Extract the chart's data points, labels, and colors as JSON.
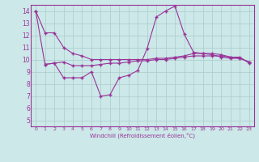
{
  "bg_color": "#cce8e8",
  "line_color": "#993399",
  "grid_color": "#aacccc",
  "xlabel": "Windchill (Refroidissement éolien,°C)",
  "xlim": [
    -0.5,
    23.5
  ],
  "ylim": [
    4.5,
    14.5
  ],
  "xticks": [
    0,
    1,
    2,
    3,
    4,
    5,
    6,
    7,
    8,
    9,
    10,
    11,
    12,
    13,
    14,
    15,
    16,
    17,
    18,
    19,
    20,
    21,
    22,
    23
  ],
  "yticks": [
    5,
    6,
    7,
    8,
    9,
    10,
    11,
    12,
    13,
    14
  ],
  "line1_x": [
    0,
    1,
    2,
    3,
    4,
    5,
    6,
    7,
    8,
    9,
    10,
    11,
    12,
    13,
    14,
    15,
    16,
    17,
    18,
    19,
    20,
    21,
    22,
    23
  ],
  "line1_y": [
    14.0,
    12.2,
    12.2,
    11.0,
    10.5,
    10.3,
    10.0,
    10.0,
    10.0,
    10.0,
    10.0,
    10.0,
    10.0,
    10.1,
    10.1,
    10.2,
    10.3,
    10.5,
    10.5,
    10.5,
    10.4,
    10.2,
    10.1,
    9.8
  ],
  "line2_x": [
    0,
    1,
    2,
    3,
    4,
    5,
    6,
    7,
    8,
    9,
    10,
    11,
    12,
    13,
    14,
    15,
    16,
    17,
    18,
    19,
    20,
    21,
    22,
    23
  ],
  "line2_y": [
    14.0,
    9.6,
    9.7,
    9.8,
    9.5,
    9.5,
    9.5,
    9.6,
    9.7,
    9.7,
    9.8,
    9.9,
    9.9,
    10.0,
    10.0,
    10.1,
    10.2,
    10.3,
    10.3,
    10.3,
    10.3,
    10.2,
    10.2,
    9.7
  ],
  "line3_x": [
    1,
    2,
    3,
    4,
    5,
    6,
    7,
    8,
    9,
    10,
    11,
    12,
    13,
    14,
    15,
    16,
    17,
    18,
    19,
    20,
    21,
    22,
    23
  ],
  "line3_y": [
    9.6,
    9.7,
    8.5,
    8.5,
    8.5,
    9.0,
    7.0,
    7.1,
    8.5,
    8.7,
    9.1,
    10.9,
    13.5,
    14.0,
    14.4,
    12.1,
    10.6,
    10.5,
    10.4,
    10.2,
    10.1,
    10.1,
    9.8
  ]
}
